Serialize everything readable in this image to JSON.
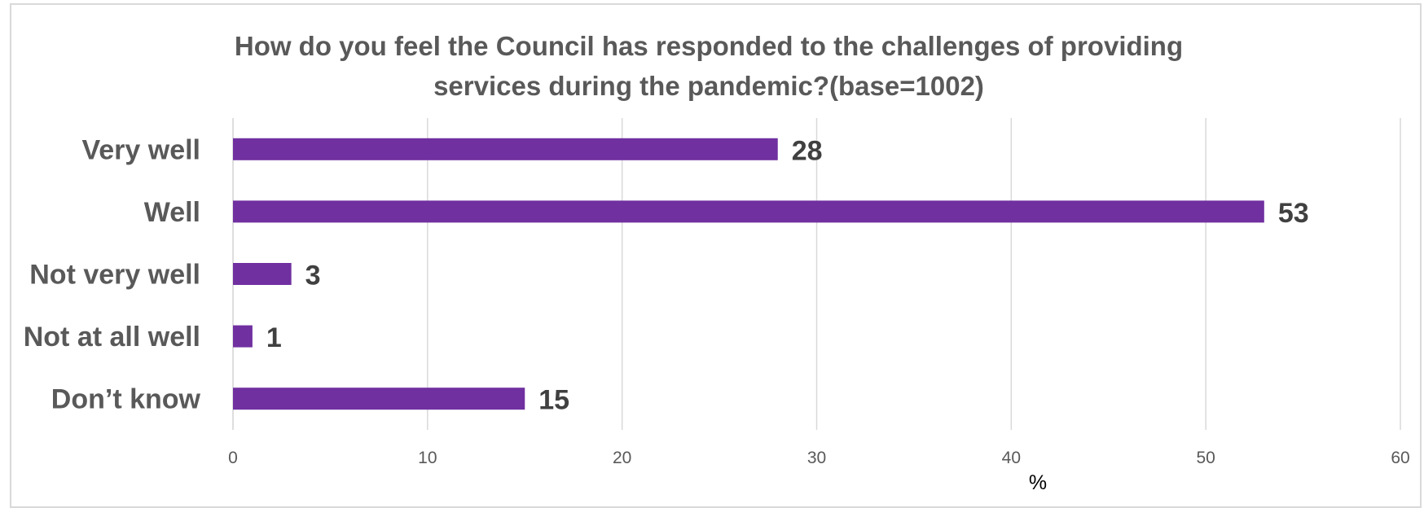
{
  "chart_data": {
    "type": "bar",
    "orientation": "horizontal",
    "title": "How do you feel the Council has responded to the challenges of providing services during the pandemic?(base=1002)",
    "title_lines": [
      "How do you feel the Council has responded to the challenges of providing",
      "services during the pandemic?(base=1002)"
    ],
    "categories": [
      "Very well",
      "Well",
      "Not very well",
      "Not at all well",
      "Don’t know"
    ],
    "values": [
      28,
      53,
      3,
      1,
      15
    ],
    "data_labels": [
      "28",
      "53",
      "3",
      "1",
      "15"
    ],
    "xlabel": "%",
    "ylabel": "",
    "xlim": [
      0,
      60
    ],
    "x_ticks": [
      "0",
      "10",
      "20",
      "30",
      "40",
      "50",
      "60"
    ],
    "grid": "vertical gridlines",
    "legend": "none",
    "bar_color": "#7030a0",
    "grid_color": "#d9d9d9"
  }
}
